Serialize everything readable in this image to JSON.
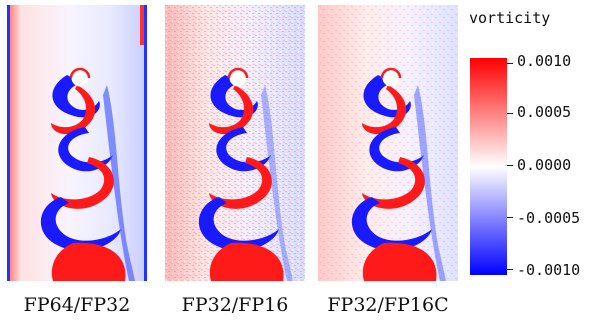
{
  "colorbar": {
    "title": "vorticity",
    "ticks": [
      "0.0010",
      "0.0005",
      "0.0000",
      "-0.0005",
      "-0.0010"
    ],
    "color_max": "#ff0000",
    "color_mid": "#ffffff",
    "color_min": "#0000ff"
  },
  "panels": [
    {
      "caption": "FP64/FP32",
      "background_tint": "#f4f6ff",
      "noise": "low"
    },
    {
      "caption": "FP32/FP16",
      "background_tint": "#fbeaea",
      "noise": "high"
    },
    {
      "caption": "FP32/FP16C",
      "background_tint": "#fdecec",
      "noise": "medium"
    }
  ],
  "colors": {
    "positive": "#ff1a1a",
    "negative": "#1a1aff",
    "cylinder": "#ffffff"
  }
}
